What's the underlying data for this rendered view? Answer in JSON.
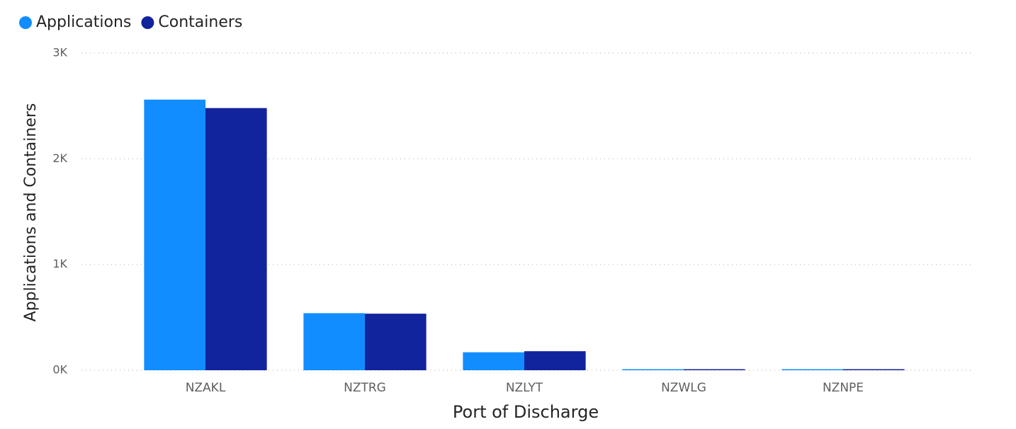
{
  "chart_data": {
    "type": "bar",
    "x_label": "Port of Discharge",
    "y_label": "Applications and Containers",
    "categories": [
      "NZAKL",
      "NZTRG",
      "NZLYT",
      "NZWLG",
      "NZNPE"
    ],
    "series": [
      {
        "name": "Applications",
        "color": "#118dff",
        "values": [
          2560,
          540,
          170,
          10,
          10
        ]
      },
      {
        "name": "Containers",
        "color": "#12239e",
        "values": [
          2480,
          535,
          180,
          10,
          10
        ]
      }
    ],
    "ylim": [
      0,
      3000
    ],
    "yticks": [
      {
        "value": 0,
        "label": "0K"
      },
      {
        "value": 1000,
        "label": "1K"
      },
      {
        "value": 2000,
        "label": "2K"
      },
      {
        "value": 3000,
        "label": "3K"
      }
    ],
    "grid": true,
    "legend": "top-left"
  }
}
